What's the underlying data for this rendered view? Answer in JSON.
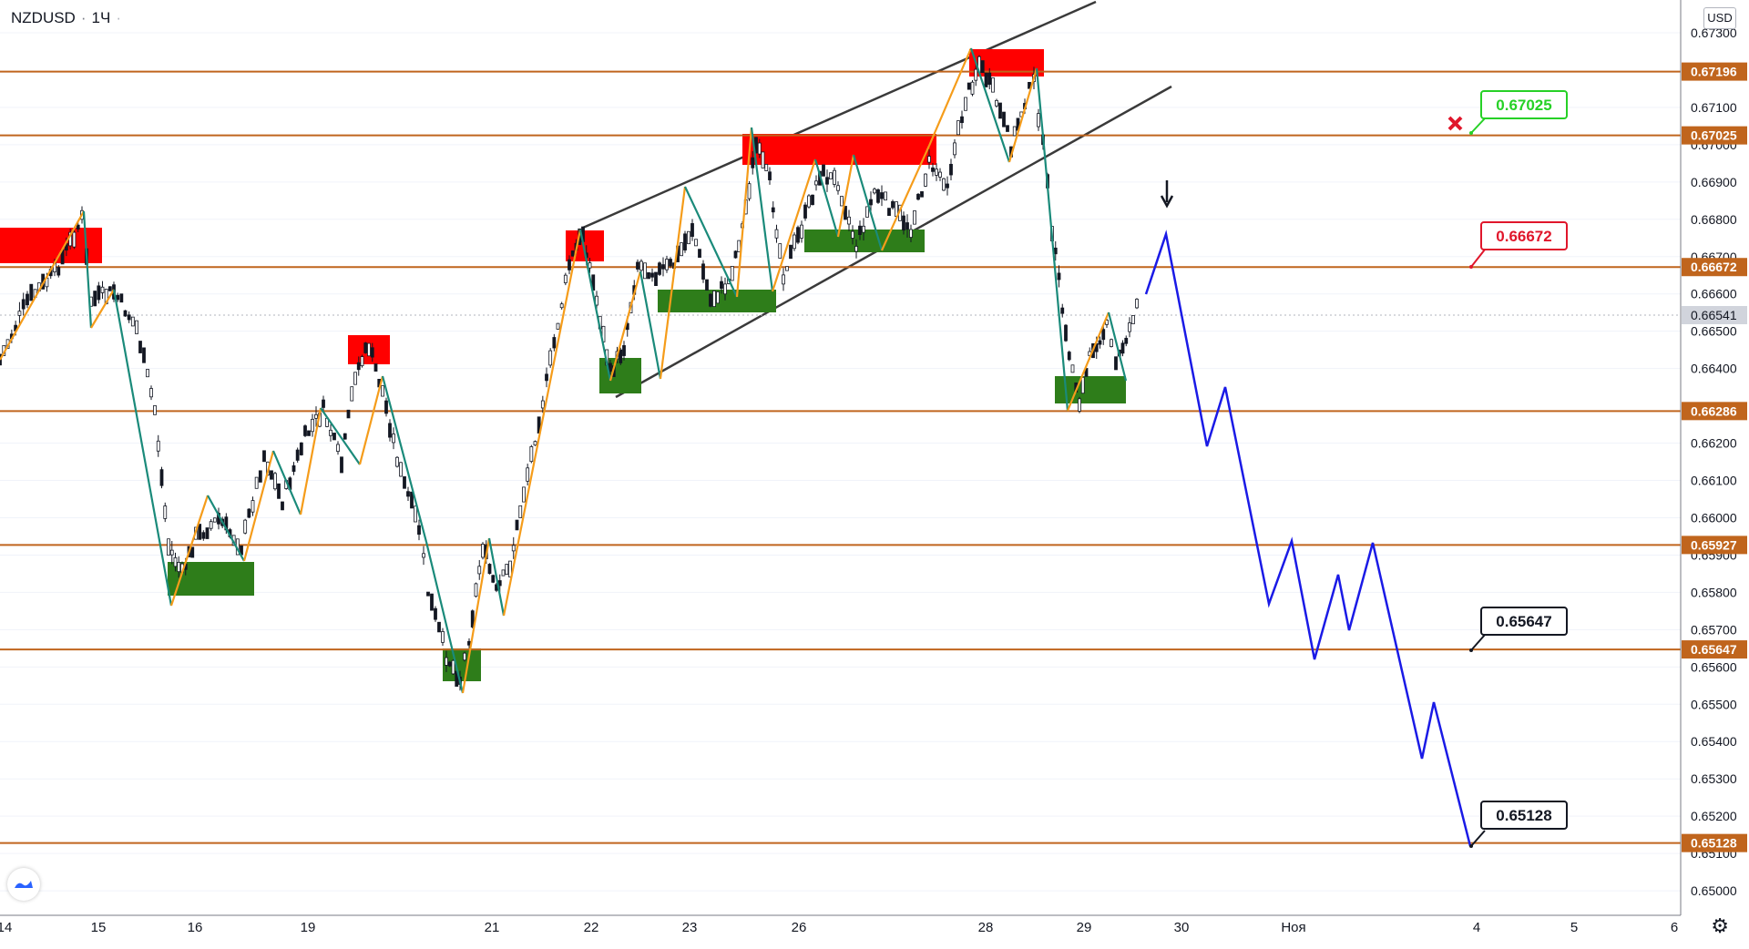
{
  "header": {
    "symbol": "NZDUSD",
    "separator": "·",
    "interval": "1Ч",
    "dot": "·",
    "currency": "USD"
  },
  "colors": {
    "level_line": "#c0651d",
    "resistance_zone": "#ff0000",
    "support_zone": "#2e7d1a",
    "forecast": "#1a1ae6",
    "channel": "#3a3a3a",
    "wave_up": "#f59c1a",
    "wave_down": "#1a8a7a",
    "callout_green": "#26d126",
    "callout_red": "#e0162b",
    "callout_black": "#131722",
    "candle": "#131722",
    "grid": "#f0f3fa"
  },
  "y_axis": {
    "ticks": [
      "0.67300",
      "0.67100",
      "0.67000",
      "0.66900",
      "0.66800",
      "0.66700",
      "0.66600",
      "0.66500",
      "0.66400",
      "0.66200",
      "0.66100",
      "0.66000",
      "0.65900",
      "0.65800",
      "0.65700",
      "0.65600",
      "0.65500",
      "0.65400",
      "0.65300",
      "0.65200",
      "0.65100",
      "0.65000"
    ],
    "levels": [
      "0.67196",
      "0.67025",
      "0.66672",
      "0.66286",
      "0.65927",
      "0.65647",
      "0.65128"
    ],
    "current_price": "0.66541"
  },
  "x_axis": {
    "ticks": [
      "14",
      "15",
      "16",
      "19",
      "21",
      "22",
      "23",
      "26",
      "28",
      "29",
      "30",
      "Ноя",
      "4",
      "5",
      "6"
    ]
  },
  "callouts": [
    {
      "name": "target-0.67025",
      "text": "0.67025",
      "color": "green"
    },
    {
      "name": "target-0.66672",
      "text": "0.66672",
      "color": "red"
    },
    {
      "name": "target-0.65647",
      "text": "0.65647",
      "color": "black"
    },
    {
      "name": "target-0.65128",
      "text": "0.65128",
      "color": "black"
    }
  ],
  "icons": {
    "cancel": "red-x-icon",
    "arrow": "down-arrow-icon",
    "logo": "tradingview-logo-icon",
    "settings": "gear-icon"
  }
}
